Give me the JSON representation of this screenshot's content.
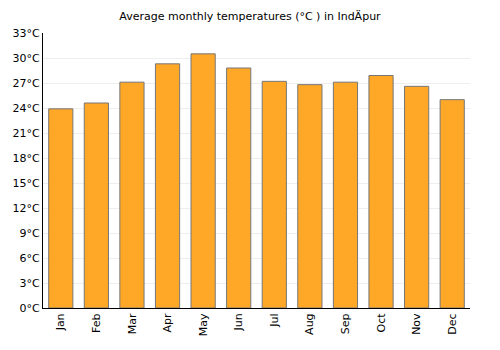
{
  "chart_data": {
    "type": "bar",
    "title": "Average monthly temperatures (°C ) in IndÄpur",
    "categories": [
      "Jan",
      "Feb",
      "Mar",
      "Apr",
      "May",
      "Jun",
      "Jul",
      "Aug",
      "Sep",
      "Oct",
      "Nov",
      "Dec"
    ],
    "values": [
      23.9,
      24.6,
      27.1,
      29.3,
      30.5,
      28.8,
      27.2,
      26.8,
      27.1,
      27.9,
      26.6,
      25.0
    ],
    "color": "#ffa726",
    "ylim": [
      0,
      33
    ],
    "yticks": [
      {
        "value": 0,
        "label": "0°C"
      },
      {
        "value": 3,
        "label": "3°C"
      },
      {
        "value": 6,
        "label": "6°C"
      },
      {
        "value": 9,
        "label": "9°C"
      },
      {
        "value": 12,
        "label": "12°C"
      },
      {
        "value": 15,
        "label": "15°C"
      },
      {
        "value": 18,
        "label": "18°C"
      },
      {
        "value": 21,
        "label": "21°C"
      },
      {
        "value": 24,
        "label": "24°C"
      },
      {
        "value": 27,
        "label": "27°C"
      },
      {
        "value": 30,
        "label": "30°C"
      },
      {
        "value": 33,
        "label": "33°C"
      }
    ],
    "grid": true
  }
}
